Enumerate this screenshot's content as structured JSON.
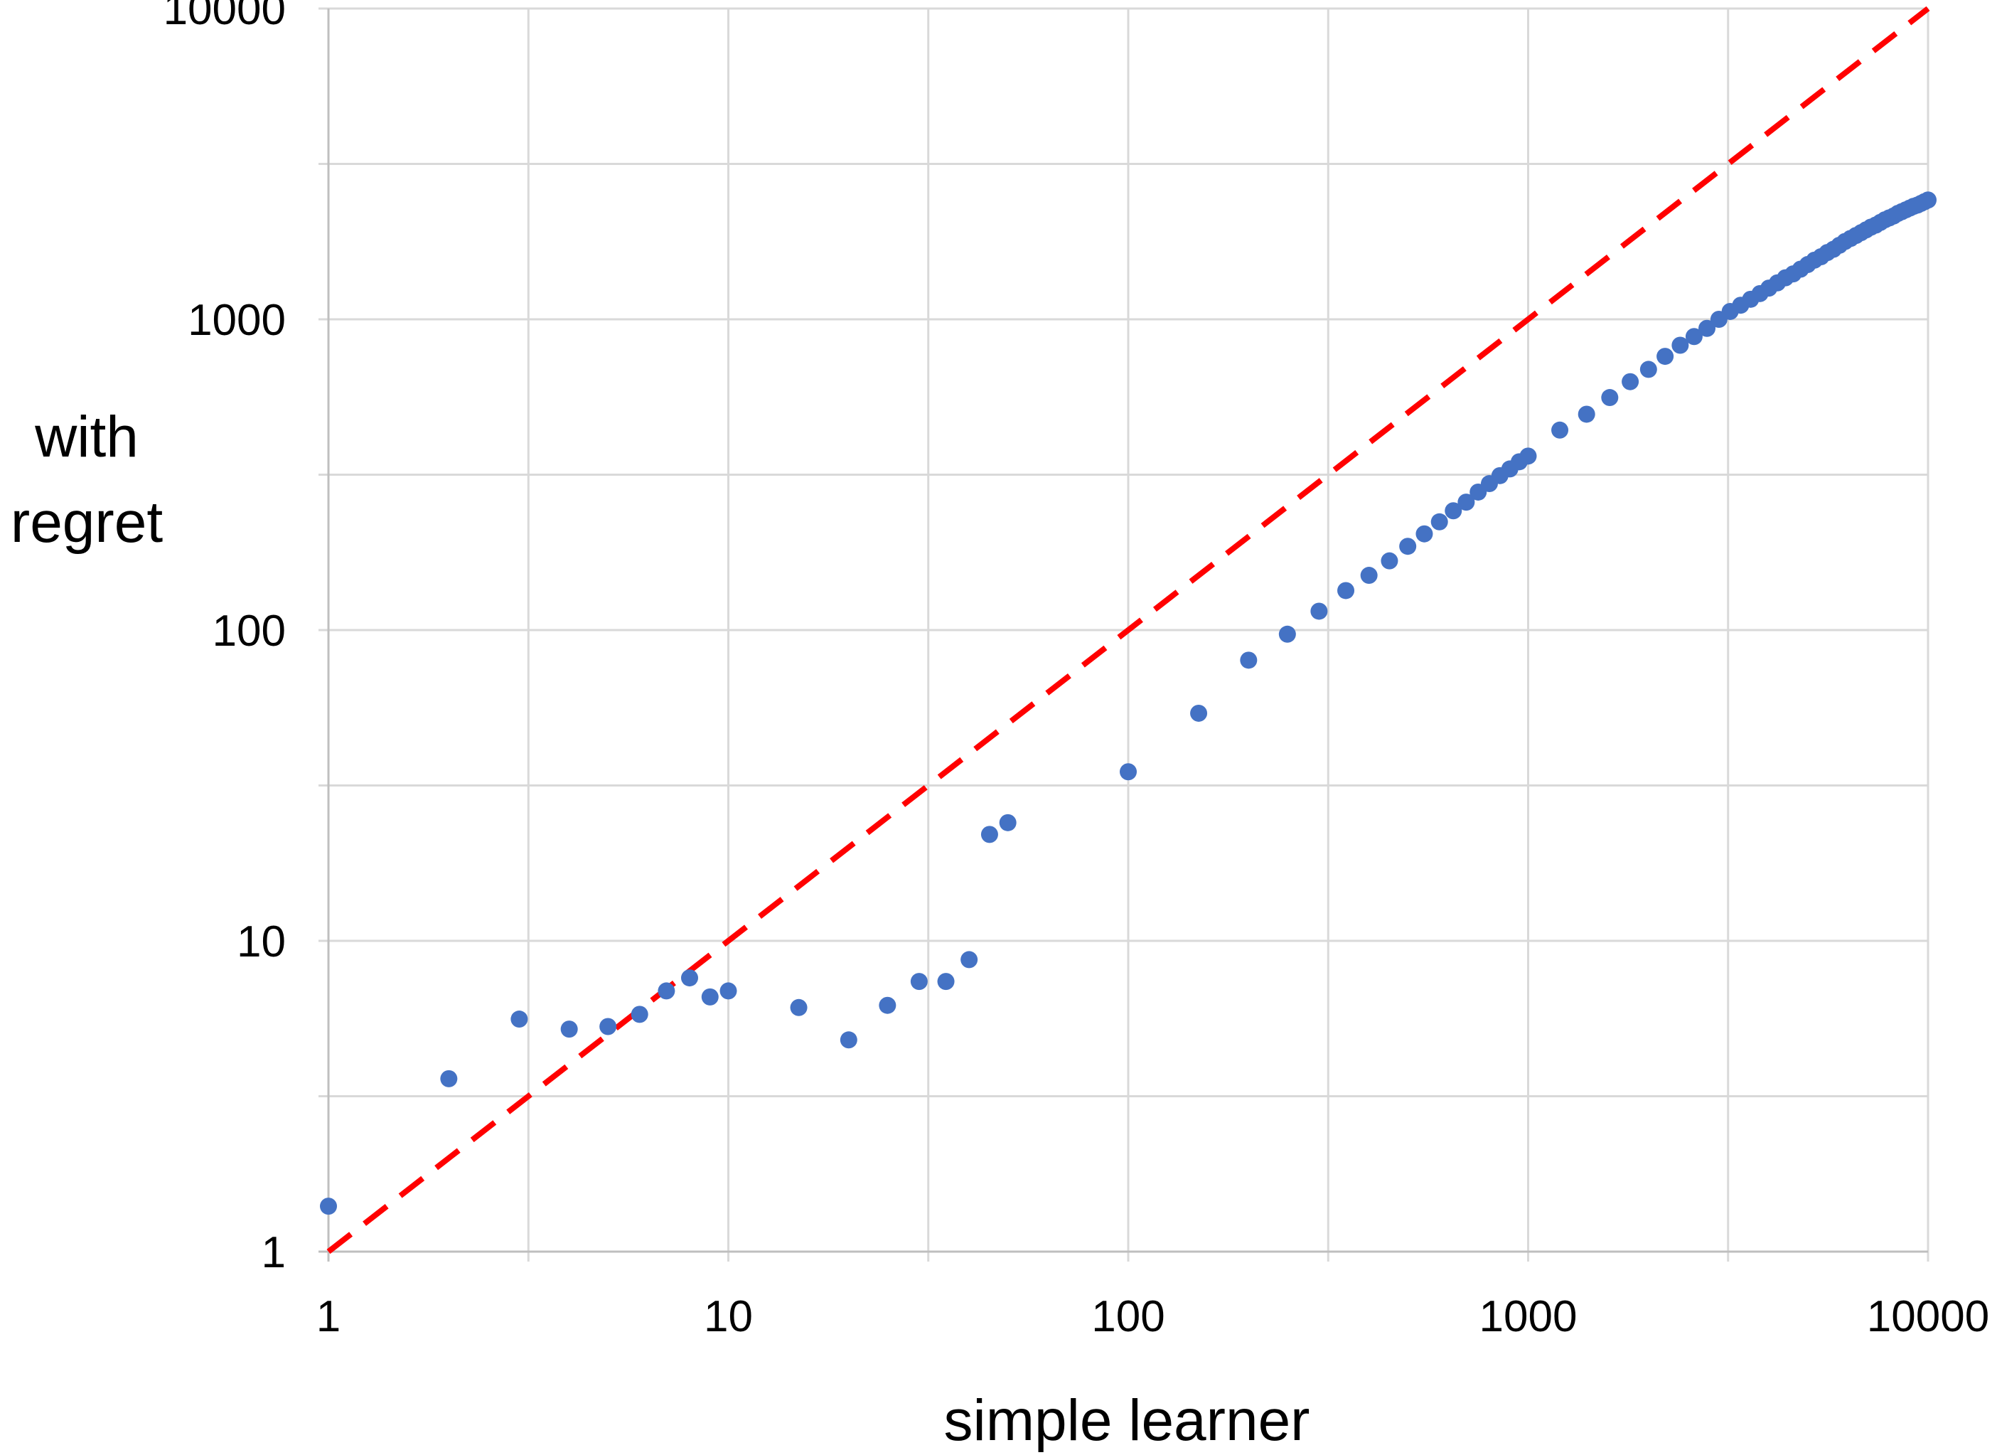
{
  "chart_data": {
    "type": "scatter",
    "title": "",
    "xlabel": "simple learner",
    "ylabel_lines": [
      "with",
      "regret"
    ],
    "x_scale": "log",
    "y_scale": "log",
    "xlim": [
      1,
      10000
    ],
    "ylim": [
      1,
      10000
    ],
    "x_ticks": [
      "1",
      "10",
      "100",
      "1000",
      "10000"
    ],
    "y_ticks": [
      "1",
      "10",
      "100",
      "1000",
      "10000"
    ],
    "grid": true,
    "legend": "none",
    "colors": {
      "points": "#4472C4",
      "reference_line": "#FF0000",
      "grid": "#D9D9D9"
    },
    "reference_line": {
      "style": "dashed",
      "points": [
        [
          1,
          1
        ],
        [
          10000,
          10000
        ]
      ]
    },
    "series": [
      {
        "x": [
          1,
          2,
          3,
          4,
          5,
          6,
          7,
          8,
          9,
          10,
          15,
          20,
          25,
          30,
          35,
          40,
          45,
          50,
          100,
          150,
          200,
          250,
          300,
          350,
          400,
          450,
          500,
          550,
          600,
          650,
          700,
          750,
          800,
          850,
          900,
          950,
          1000,
          1200,
          1400,
          1600,
          1800,
          2000,
          2200,
          2400,
          2600,
          2800,
          3000,
          3200,
          3400,
          3600,
          3800,
          4000,
          4200,
          4400,
          4600,
          4800,
          5000,
          5200,
          5400,
          5600,
          5800,
          6000,
          6200,
          6400,
          6600,
          6800,
          7000,
          7200,
          7400,
          7600,
          7800,
          8000,
          8200,
          8400,
          8600,
          8800,
          9000,
          9200,
          9400,
          9600,
          9800,
          10000
        ],
        "y": [
          1.4,
          3.6,
          5.6,
          5.2,
          5.3,
          5.8,
          6.9,
          7.6,
          6.6,
          6.9,
          6.1,
          4.8,
          6.2,
          7.4,
          7.4,
          8.7,
          22,
          24,
          35,
          54,
          80,
          97,
          115,
          134,
          150,
          167,
          186,
          204,
          223,
          242,
          258,
          278,
          296,
          314,
          330,
          348,
          363,
          440,
          495,
          560,
          630,
          690,
          760,
          825,
          880,
          935,
          1000,
          1060,
          1110,
          1160,
          1210,
          1260,
          1310,
          1360,
          1400,
          1450,
          1500,
          1550,
          1590,
          1640,
          1680,
          1730,
          1780,
          1820,
          1860,
          1900,
          1940,
          1980,
          2010,
          2050,
          2090,
          2120,
          2150,
          2190,
          2220,
          2250,
          2280,
          2310,
          2330,
          2360,
          2390,
          2420
        ]
      }
    ]
  }
}
